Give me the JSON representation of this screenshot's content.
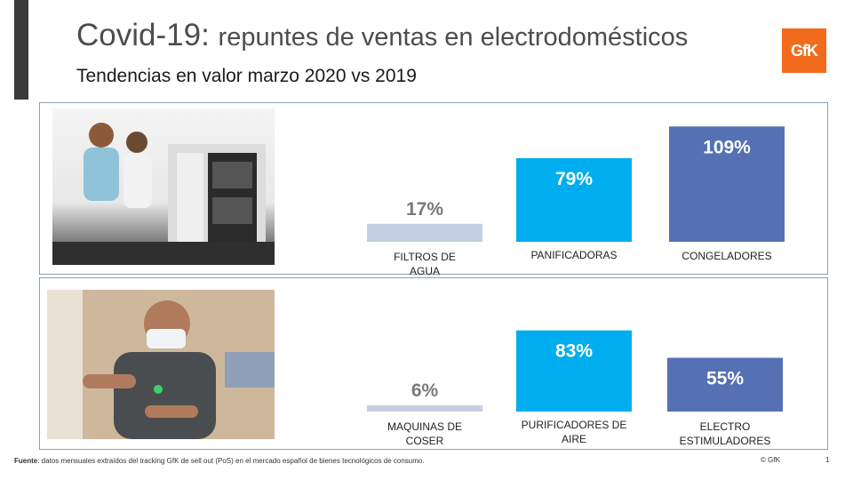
{
  "header": {
    "title_main": "Covid-19:",
    "title_rest": "repuntes de ventas en electrodomésticos",
    "subtitle": "Tendencias en valor marzo 2020 vs 2019",
    "logo_text": "GfK"
  },
  "colors": {
    "light": "#c5cfe3",
    "cyan": "#00adef",
    "blue": "#5570b3",
    "logo": "#f26b1d"
  },
  "chart_data": [
    {
      "type": "bar",
      "categories": [
        "FILTROS DE AGUA",
        "PANIFICADORAS",
        "CONGELADORES"
      ],
      "values": [
        17,
        79,
        109
      ],
      "labels": [
        "17%",
        "79%",
        "109%"
      ],
      "colors": [
        "#c5cfe3",
        "#00adef",
        "#5570b3"
      ]
    },
    {
      "type": "bar",
      "categories": [
        "MAQUINAS DE COSER",
        "PURIFICADORES DE AIRE",
        "ELECTRO ESTIMULADORES"
      ],
      "values": [
        6,
        83,
        55
      ],
      "labels": [
        "6%",
        "83%",
        "55%"
      ],
      "colors": [
        "#c5cfe3",
        "#00adef",
        "#5570b3"
      ]
    }
  ],
  "footer": {
    "source_label": "Fuente",
    "source_text": ": datos mensuales extraídos del tracking GfK de sell out (PoS) en el mercado español de bienes tecnológicos de consumo.",
    "copyright": "© GfK",
    "page": "1"
  }
}
